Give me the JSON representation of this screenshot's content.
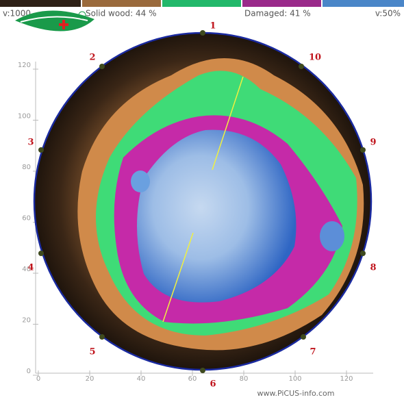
{
  "header": {
    "velocity_max": "v:1000",
    "solid_wood": "Solid wood: 44 %",
    "damaged": "Damaged: 41 %",
    "velocity_min": "v:50%"
  },
  "axes": {
    "y_ticks": [
      0,
      20,
      40,
      60,
      80,
      100,
      120
    ],
    "x_ticks": [
      0,
      20,
      40,
      60,
      80,
      100,
      120
    ]
  },
  "sensors": [
    "1",
    "2",
    "3",
    "4",
    "5",
    "6",
    "7",
    "8",
    "9",
    "10"
  ],
  "footer": "www.PiCUS-info.com"
}
